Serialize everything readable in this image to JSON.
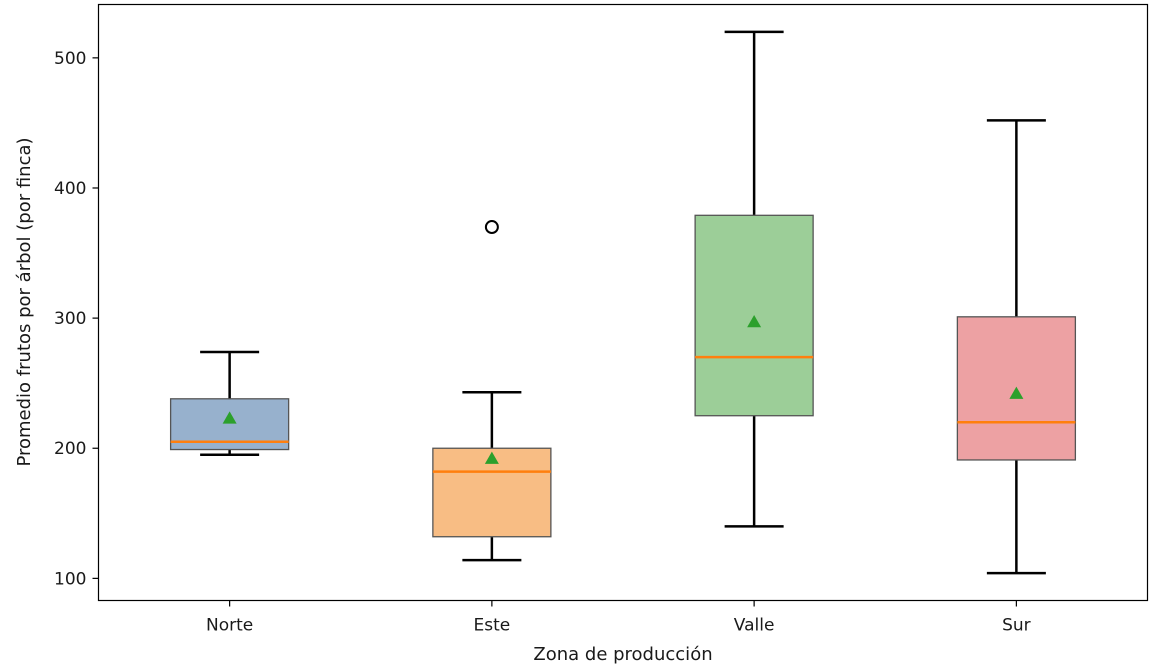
{
  "chart_data": {
    "type": "box",
    "xlabel": "Zona de producción",
    "ylabel": "Promedio frutos por árbol (por finca)",
    "ylim": [
      83,
      541
    ],
    "yticks": [
      100,
      200,
      300,
      400,
      500
    ],
    "grid": false,
    "legend": "none",
    "categories": [
      "Norte",
      "Este",
      "Valle",
      "Sur"
    ],
    "boxes": [
      {
        "label": "Norte",
        "whisker_low": 195,
        "q1": 199,
        "median": 205,
        "q3": 238,
        "whisker_high": 274,
        "mean": 223,
        "outliers": [],
        "color": "#97b1cd"
      },
      {
        "label": "Este",
        "whisker_low": 114,
        "q1": 132,
        "median": 182,
        "q3": 200,
        "whisker_high": 243,
        "mean": 192,
        "outliers": [
          370
        ],
        "color": "#f8bd84"
      },
      {
        "label": "Valle",
        "whisker_low": 140,
        "q1": 225,
        "median": 270,
        "q3": 379,
        "whisker_high": 520,
        "mean": 297,
        "outliers": [],
        "color": "#9cce98"
      },
      {
        "label": "Sur",
        "whisker_low": 104,
        "q1": 191,
        "median": 220,
        "q3": 301,
        "whisker_high": 452,
        "mean": 242,
        "outliers": [],
        "color": "#eda1a3"
      }
    ],
    "median_color": "#ff7f0e",
    "mean_marker_color": "#2ca02c"
  }
}
